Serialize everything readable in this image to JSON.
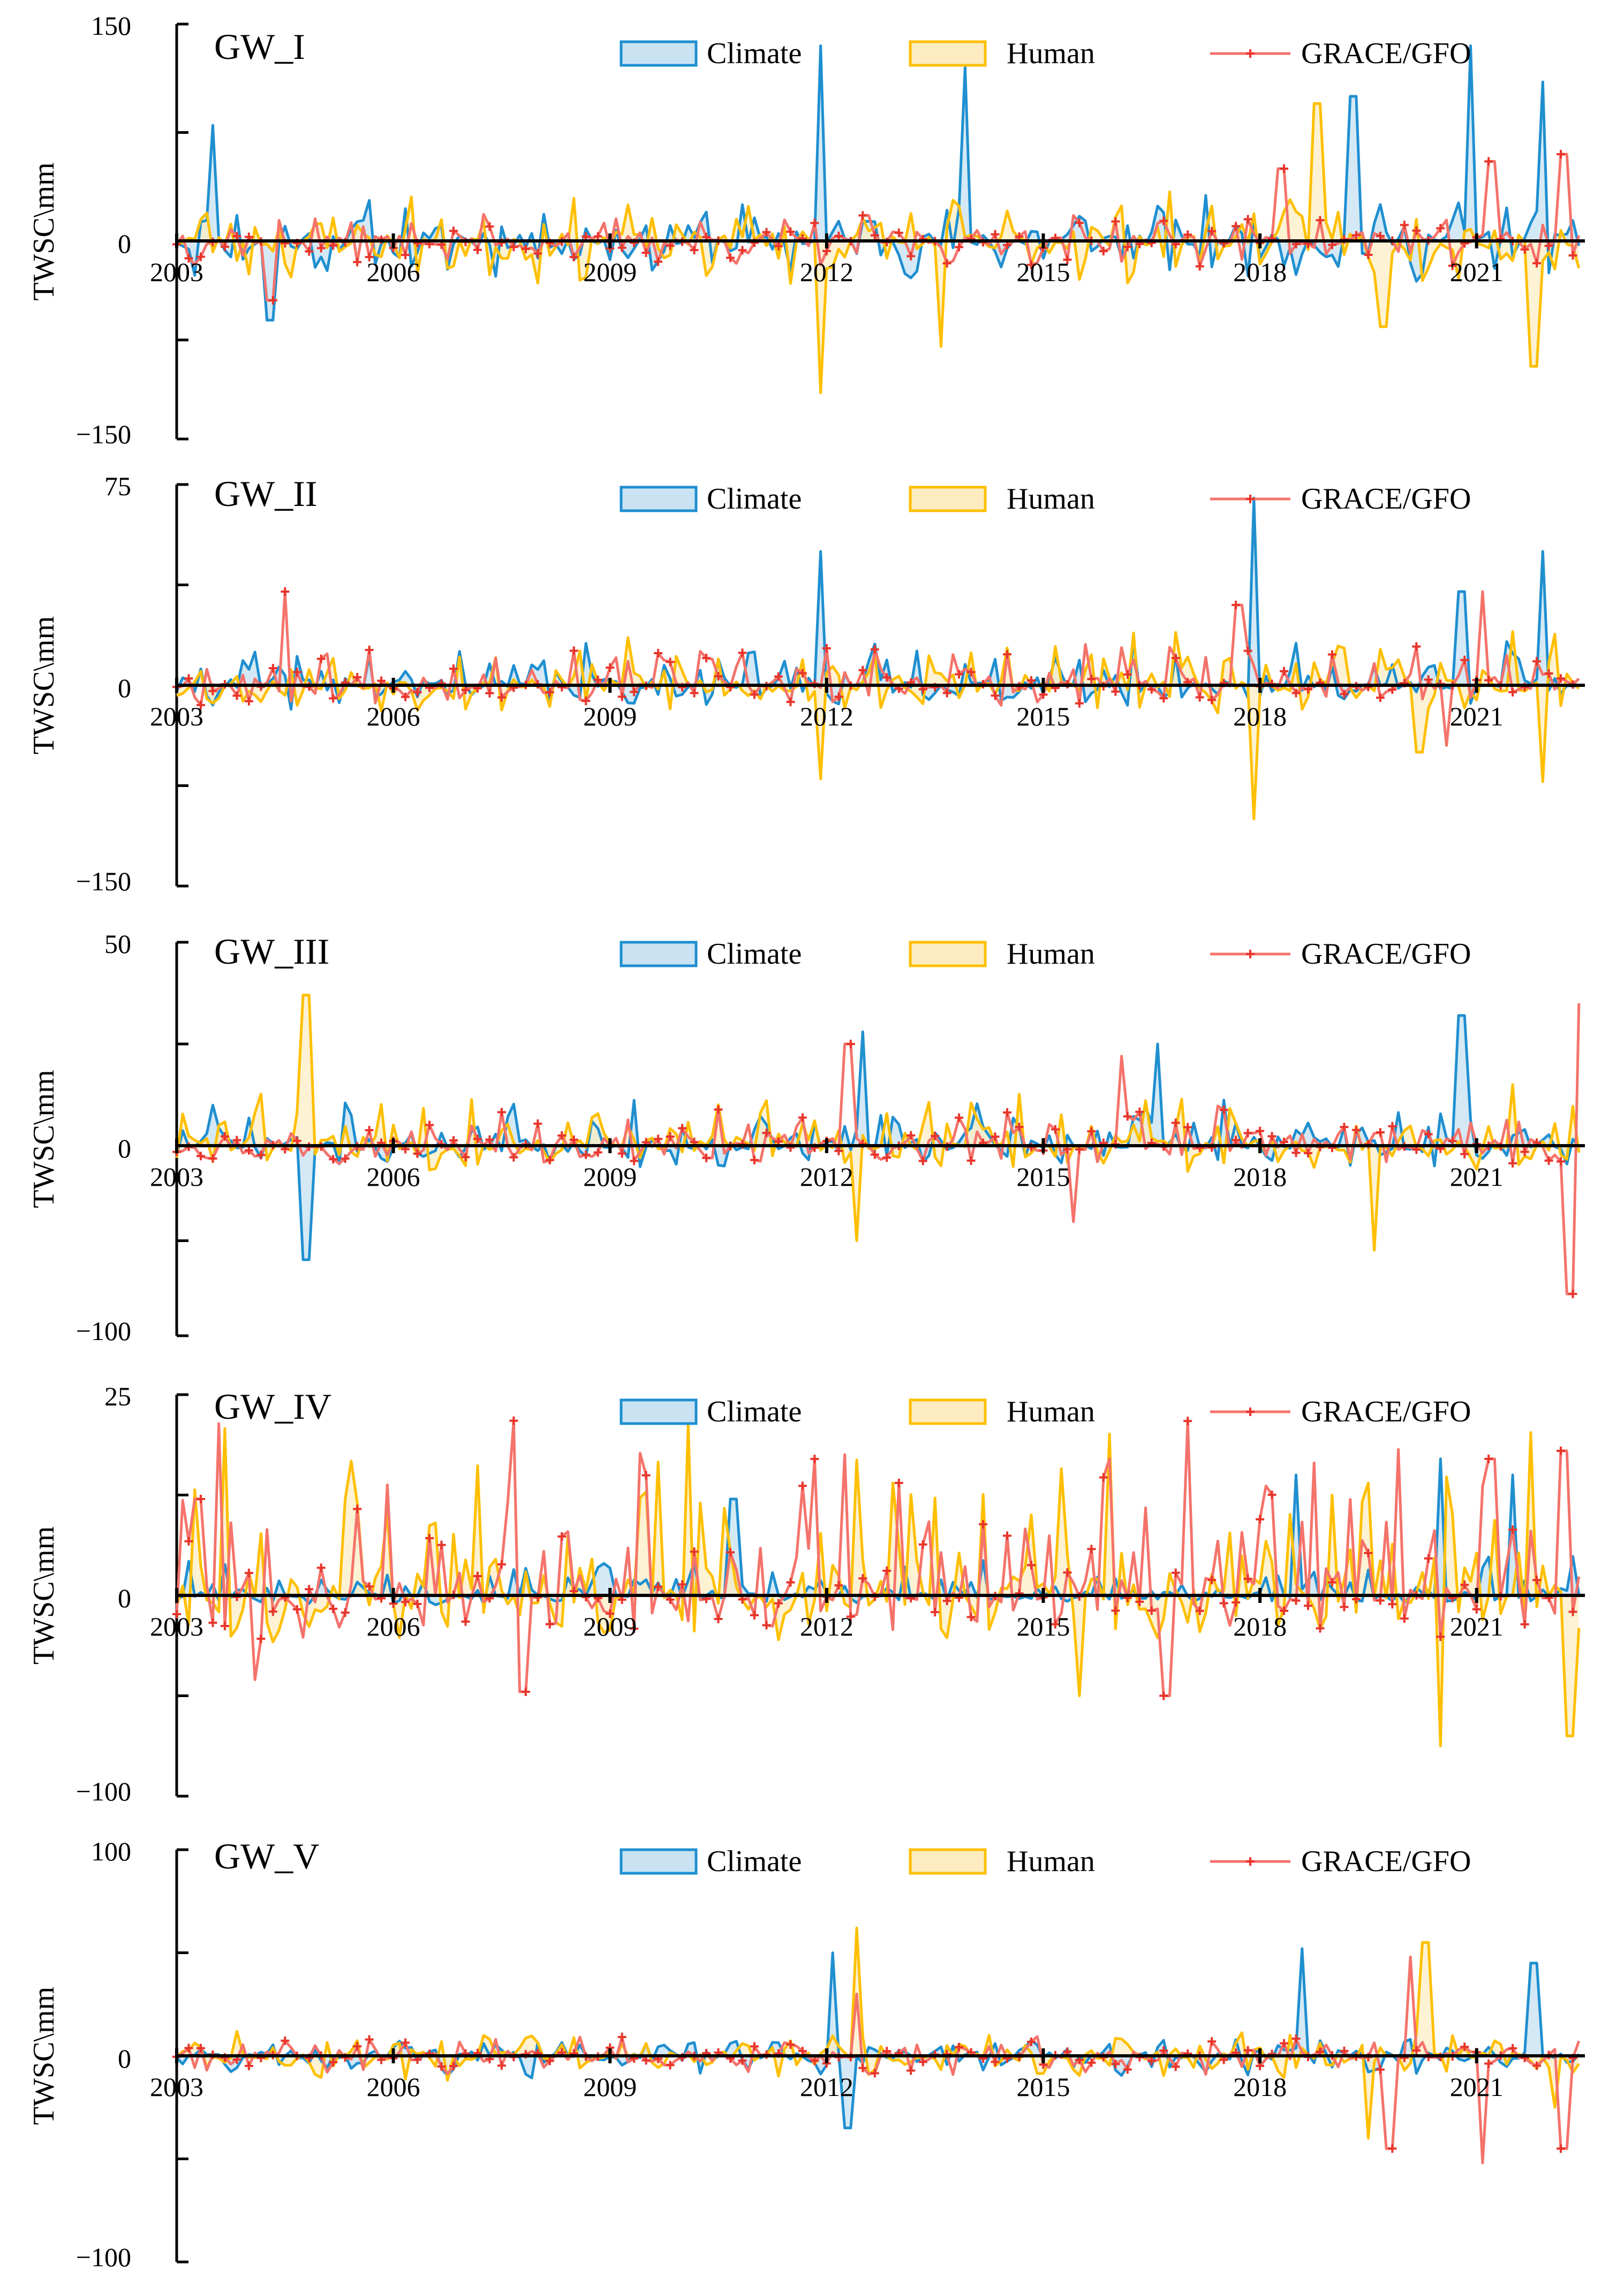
{
  "figure": {
    "x_tick_labels": [
      "2003",
      "2006",
      "2009",
      "2012",
      "2015",
      "2018",
      "2021"
    ],
    "y_axis_label": "TWSC\\mm",
    "legend": {
      "climate": "Climate",
      "human": "Human",
      "grace": "GRACE/GFO"
    },
    "colors": {
      "climate_line": "#1f8fd0",
      "climate_fill": "#c9e3f3",
      "human_line": "#ffbf00",
      "human_fill": "#fcecc0",
      "grace_line": "#f4736b",
      "grace_marker": "#e8352b",
      "zero_line": "#000000"
    }
  },
  "chart_data": [
    {
      "type": "line",
      "title": "GW_I",
      "xlabel": "",
      "ylabel": "TWSC\\mm",
      "x_range": [
        2003,
        2022.5
      ],
      "ylim": [
        -150,
        150
      ],
      "y_tick_labels": [
        "150",
        "0",
        "−150"
      ],
      "series": [
        {
          "name": "Climate",
          "seed": 11,
          "amplitude": 32,
          "spikes": [
            [
              2003.5,
              80
            ],
            [
              2004.3,
              -60
            ],
            [
              2011.9,
              135
            ],
            [
              2013.9,
              120
            ],
            [
              2019.3,
              100
            ],
            [
              2020.9,
              135
            ],
            [
              2021.9,
              110
            ]
          ]
        },
        {
          "name": "Human",
          "seed": 23,
          "amplitude": 35,
          "spikes": [
            [
              2011.9,
              -115
            ],
            [
              2013.6,
              -80
            ],
            [
              2018.8,
              95
            ],
            [
              2019.7,
              -65
            ],
            [
              2021.8,
              -95
            ]
          ]
        },
        {
          "name": "GRACE/GFO",
          "seed": 37,
          "amplitude": 20,
          "spikes": [
            [
              2004.3,
              -45
            ],
            [
              2018.3,
              50
            ],
            [
              2021.2,
              55
            ],
            [
              2022.2,
              60
            ]
          ]
        }
      ]
    },
    {
      "type": "line",
      "title": "GW_II",
      "xlabel": "",
      "ylabel": "TWSC\\mm",
      "x_range": [
        2003,
        2022.5
      ],
      "ylim": [
        -150,
        75
      ],
      "y_tick_labels": [
        "75",
        "0",
        "−150"
      ],
      "series": [
        {
          "name": "Climate",
          "seed": 41,
          "amplitude": 18,
          "spikes": [
            [
              2011.9,
              50
            ],
            [
              2017.9,
              70
            ],
            [
              2021.9,
              50
            ],
            [
              2020.8,
              35
            ]
          ]
        },
        {
          "name": "Human",
          "seed": 53,
          "amplitude": 22,
          "spikes": [
            [
              2011.9,
              -70
            ],
            [
              2017.9,
              -100
            ],
            [
              2021.9,
              -72
            ],
            [
              2020.2,
              -50
            ]
          ]
        },
        {
          "name": "GRACE/GFO",
          "seed": 67,
          "amplitude": 16,
          "spikes": [
            [
              2004.5,
              35
            ],
            [
              2017.7,
              30
            ],
            [
              2021.1,
              35
            ],
            [
              2020.6,
              -45
            ]
          ]
        }
      ]
    },
    {
      "type": "line",
      "title": "GW_III",
      "xlabel": "",
      "ylabel": "TWSC\\mm",
      "x_range": [
        2003,
        2022.5
      ],
      "ylim": [
        -100,
        50
      ],
      "y_tick_labels": [
        "50",
        "0",
        "−100"
      ],
      "series": [
        {
          "name": "Climate",
          "seed": 71,
          "amplitude": 12,
          "spikes": [
            [
              2004.8,
              -60
            ],
            [
              2012.5,
              28
            ],
            [
              2016.6,
              25
            ],
            [
              2020.8,
              32
            ]
          ]
        },
        {
          "name": "Human",
          "seed": 83,
          "amplitude": 14,
          "spikes": [
            [
              2004.8,
              37
            ],
            [
              2012.4,
              -50
            ],
            [
              2019.6,
              -55
            ],
            [
              2021.5,
              15
            ]
          ]
        },
        {
          "name": "GRACE/GFO",
          "seed": 97,
          "amplitude": 10,
          "spikes": [
            [
              2012.3,
              25
            ],
            [
              2015.4,
              -40
            ],
            [
              2016.1,
              22
            ],
            [
              2022.3,
              -78
            ],
            [
              2022.4,
              35
            ]
          ]
        }
      ]
    },
    {
      "type": "line",
      "title": "GW_IV",
      "xlabel": "",
      "ylabel": "TWSC\\mm",
      "x_range": [
        2003,
        2022.5
      ],
      "ylim": [
        -100,
        25
      ],
      "y_tick_labels": [
        "25",
        "0",
        "−100"
      ],
      "series": [
        {
          "name": "Climate",
          "seed": 101,
          "amplitude": 5,
          "spikes": [
            [
              2010.7,
              12
            ],
            [
              2018.5,
              15
            ],
            [
              2020.5,
              17
            ],
            [
              2021.5,
              15
            ]
          ]
        },
        {
          "name": "Human",
          "seed": 113,
          "amplitude": 24,
          "spikes": [
            [
              2012.9,
              14
            ],
            [
              2015.5,
              -50
            ],
            [
              2020.5,
              -75
            ],
            [
              2022.3,
              -70
            ]
          ]
        },
        {
          "name": "GRACE/GFO",
          "seed": 127,
          "amplitude": 22,
          "spikes": [
            [
              2003.3,
              12
            ],
            [
              2004.1,
              -42
            ],
            [
              2007.8,
              -48
            ],
            [
              2016.7,
              -50
            ],
            [
              2021.2,
              17
            ],
            [
              2022.2,
              18
            ]
          ]
        }
      ]
    },
    {
      "type": "line",
      "title": "GW_V",
      "xlabel": "",
      "ylabel": "TWSC\\mm",
      "x_range": [
        2003,
        2022.5
      ],
      "ylim": [
        -100,
        100
      ],
      "y_tick_labels": [
        "100",
        "0",
        "−100"
      ],
      "series": [
        {
          "name": "Climate",
          "seed": 131,
          "amplitude": 11,
          "spikes": [
            [
              2012.1,
              50
            ],
            [
              2012.3,
              -35
            ],
            [
              2018.6,
              52
            ],
            [
              2021.8,
              45
            ]
          ]
        },
        {
          "name": "Human",
          "seed": 137,
          "amplitude": 13,
          "spikes": [
            [
              2012.4,
              62
            ],
            [
              2019.5,
              -40
            ],
            [
              2020.3,
              55
            ],
            [
              2022.1,
              -25
            ]
          ]
        },
        {
          "name": "GRACE/GFO",
          "seed": 149,
          "amplitude": 10,
          "spikes": [
            [
              2012.4,
              30
            ],
            [
              2019.8,
              -45
            ],
            [
              2020.1,
              48
            ],
            [
              2021.1,
              -52
            ],
            [
              2022.2,
              -45
            ]
          ]
        }
      ]
    }
  ]
}
